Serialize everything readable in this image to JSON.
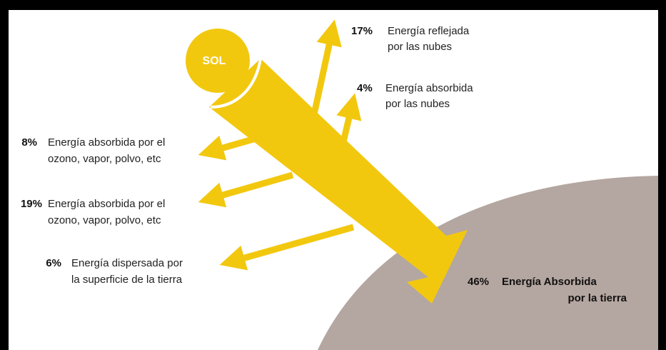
{
  "sun": {
    "label": "SOL"
  },
  "flows": [
    {
      "percent": "17%",
      "lines": [
        "Energía  reflejada",
        "por las nubes"
      ]
    },
    {
      "percent": "4%",
      "lines": [
        "Energía absorbida",
        "por las nubes"
      ]
    },
    {
      "percent": "8%",
      "lines": [
        "Energía absorbida por el",
        "ozono, vapor, polvo, etc"
      ]
    },
    {
      "percent": "19%",
      "lines": [
        "Energía absorbida por el",
        "ozono, vapor, polvo, etc"
      ]
    },
    {
      "percent": "6%",
      "lines": [
        "Energía dispersada por",
        "la superficie de la tierra"
      ]
    },
    {
      "percent": "46%",
      "lines": [
        "Energía Absorbida",
        "por la tierra"
      ]
    }
  ]
}
